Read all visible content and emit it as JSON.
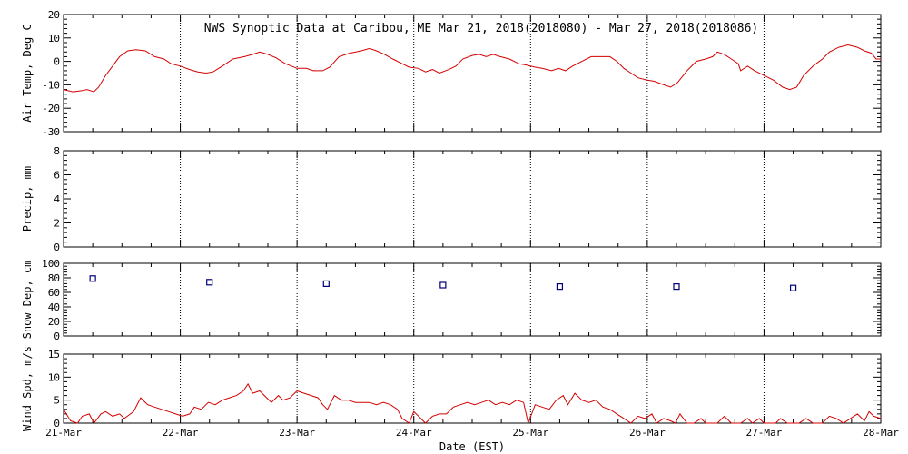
{
  "title": "NWS Synoptic Data at Caribou, ME   Mar 21, 2018(2018080) - Mar 27, 2018(2018086)",
  "chart_data": {
    "x_axis": {
      "label": "Date (EST)",
      "range_days": [
        0,
        7
      ],
      "ticks": [
        {
          "day": 0,
          "label": "21-Mar"
        },
        {
          "day": 1,
          "label": "22-Mar"
        },
        {
          "day": 2,
          "label": "23-Mar"
        },
        {
          "day": 3,
          "label": "24-Mar"
        },
        {
          "day": 4,
          "label": "25-Mar"
        },
        {
          "day": 5,
          "label": "26-Mar"
        },
        {
          "day": 6,
          "label": "27-Mar"
        },
        {
          "day": 7,
          "label": "28-Mar"
        }
      ],
      "grid": true
    },
    "panels": [
      {
        "id": "air-temp",
        "type": "line",
        "ylabel": "Air Temp, Deg C",
        "ylim": [
          -30,
          20
        ],
        "yticks": [
          -30,
          -20,
          -10,
          0,
          10,
          20
        ],
        "color": "#d40000",
        "series": [
          {
            "x": 0.0,
            "y": -12
          },
          {
            "x": 0.08,
            "y": -13
          },
          {
            "x": 0.16,
            "y": -12.5
          },
          {
            "x": 0.2,
            "y": -12
          },
          {
            "x": 0.26,
            "y": -13
          },
          {
            "x": 0.3,
            "y": -11
          },
          {
            "x": 0.36,
            "y": -6
          },
          {
            "x": 0.42,
            "y": -2
          },
          {
            "x": 0.48,
            "y": 2
          },
          {
            "x": 0.55,
            "y": 4.5
          },
          {
            "x": 0.62,
            "y": 5
          },
          {
            "x": 0.7,
            "y": 4.5
          },
          {
            "x": 0.78,
            "y": 2
          },
          {
            "x": 0.86,
            "y": 1
          },
          {
            "x": 0.92,
            "y": -1
          },
          {
            "x": 1.0,
            "y": -2
          },
          {
            "x": 1.08,
            "y": -3.5
          },
          {
            "x": 1.15,
            "y": -4.5
          },
          {
            "x": 1.22,
            "y": -5
          },
          {
            "x": 1.28,
            "y": -4.5
          },
          {
            "x": 1.36,
            "y": -2
          },
          {
            "x": 1.45,
            "y": 1
          },
          {
            "x": 1.55,
            "y": 2
          },
          {
            "x": 1.62,
            "y": 3
          },
          {
            "x": 1.68,
            "y": 4
          },
          {
            "x": 1.75,
            "y": 3
          },
          {
            "x": 1.82,
            "y": 1.5
          },
          {
            "x": 1.9,
            "y": -1
          },
          {
            "x": 2.0,
            "y": -3
          },
          {
            "x": 2.08,
            "y": -3
          },
          {
            "x": 2.14,
            "y": -4
          },
          {
            "x": 2.22,
            "y": -4
          },
          {
            "x": 2.28,
            "y": -2.5
          },
          {
            "x": 2.36,
            "y": 2
          },
          {
            "x": 2.45,
            "y": 3.5
          },
          {
            "x": 2.55,
            "y": 4.5
          },
          {
            "x": 2.62,
            "y": 5.5
          },
          {
            "x": 2.68,
            "y": 4.5
          },
          {
            "x": 2.75,
            "y": 3
          },
          {
            "x": 2.82,
            "y": 1
          },
          {
            "x": 2.9,
            "y": -1
          },
          {
            "x": 2.96,
            "y": -2.5
          },
          {
            "x": 3.04,
            "y": -3
          },
          {
            "x": 3.1,
            "y": -4.5
          },
          {
            "x": 3.16,
            "y": -3.5
          },
          {
            "x": 3.22,
            "y": -5
          },
          {
            "x": 3.3,
            "y": -3.5
          },
          {
            "x": 3.36,
            "y": -2
          },
          {
            "x": 3.42,
            "y": 1
          },
          {
            "x": 3.5,
            "y": 2.5
          },
          {
            "x": 3.56,
            "y": 3
          },
          {
            "x": 3.62,
            "y": 2
          },
          {
            "x": 3.68,
            "y": 3
          },
          {
            "x": 3.74,
            "y": 2
          },
          {
            "x": 3.82,
            "y": 1
          },
          {
            "x": 3.9,
            "y": -1
          },
          {
            "x": 3.96,
            "y": -1.5
          },
          {
            "x": 4.04,
            "y": -2.5
          },
          {
            "x": 4.1,
            "y": -3
          },
          {
            "x": 4.18,
            "y": -4
          },
          {
            "x": 4.24,
            "y": -3
          },
          {
            "x": 4.3,
            "y": -4
          },
          {
            "x": 4.36,
            "y": -2
          },
          {
            "x": 4.44,
            "y": 0
          },
          {
            "x": 4.52,
            "y": 2
          },
          {
            "x": 4.6,
            "y": 2
          },
          {
            "x": 4.68,
            "y": 2
          },
          {
            "x": 4.74,
            "y": 0
          },
          {
            "x": 4.8,
            "y": -3
          },
          {
            "x": 4.86,
            "y": -5
          },
          {
            "x": 4.92,
            "y": -7
          },
          {
            "x": 5.0,
            "y": -8
          },
          {
            "x": 5.06,
            "y": -8.5
          },
          {
            "x": 5.14,
            "y": -10
          },
          {
            "x": 5.2,
            "y": -11
          },
          {
            "x": 5.26,
            "y": -9
          },
          {
            "x": 5.34,
            "y": -4
          },
          {
            "x": 5.42,
            "y": 0
          },
          {
            "x": 5.5,
            "y": 1
          },
          {
            "x": 5.56,
            "y": 2
          },
          {
            "x": 5.6,
            "y": 4
          },
          {
            "x": 5.66,
            "y": 3
          },
          {
            "x": 5.72,
            "y": 1
          },
          {
            "x": 5.78,
            "y": -1
          },
          {
            "x": 5.8,
            "y": -4
          },
          {
            "x": 5.86,
            "y": -2
          },
          {
            "x": 5.92,
            "y": -4
          },
          {
            "x": 6.0,
            "y": -6
          },
          {
            "x": 6.08,
            "y": -8
          },
          {
            "x": 6.16,
            "y": -11
          },
          {
            "x": 6.22,
            "y": -12
          },
          {
            "x": 6.28,
            "y": -11
          },
          {
            "x": 6.34,
            "y": -6
          },
          {
            "x": 6.42,
            "y": -2
          },
          {
            "x": 6.5,
            "y": 1
          },
          {
            "x": 6.56,
            "y": 4
          },
          {
            "x": 6.64,
            "y": 6
          },
          {
            "x": 6.72,
            "y": 7
          },
          {
            "x": 6.8,
            "y": 6
          },
          {
            "x": 6.86,
            "y": 4.5
          },
          {
            "x": 6.92,
            "y": 3.5
          },
          {
            "x": 6.96,
            "y": 1
          },
          {
            "x": 7.0,
            "y": 1
          }
        ]
      },
      {
        "id": "precip",
        "type": "line",
        "ylabel": "Precip, mm",
        "ylim": [
          0,
          8
        ],
        "yticks": [
          0,
          2,
          4,
          6,
          8
        ],
        "series": []
      },
      {
        "id": "snow-depth",
        "type": "scatter",
        "ylabel": "Snow Dep, cm",
        "ylim": [
          0,
          100
        ],
        "yticks": [
          0,
          20,
          40,
          60,
          80,
          100
        ],
        "color": "#00007a",
        "series": [
          {
            "x": 0.25,
            "y": 79
          },
          {
            "x": 1.25,
            "y": 74
          },
          {
            "x": 2.25,
            "y": 72
          },
          {
            "x": 3.25,
            "y": 70
          },
          {
            "x": 4.25,
            "y": 68
          },
          {
            "x": 5.25,
            "y": 68
          },
          {
            "x": 6.25,
            "y": 66
          }
        ]
      },
      {
        "id": "wind-speed",
        "type": "line",
        "ylabel": "Wind Spd, m/s",
        "ylim": [
          0,
          15
        ],
        "yticks": [
          0,
          5,
          10,
          15
        ],
        "color": "#d40000",
        "series": [
          {
            "x": 0.0,
            "y": 3
          },
          {
            "x": 0.06,
            "y": 0.5
          },
          {
            "x": 0.12,
            "y": 0
          },
          {
            "x": 0.16,
            "y": 1.5
          },
          {
            "x": 0.22,
            "y": 2
          },
          {
            "x": 0.26,
            "y": 0
          },
          {
            "x": 0.32,
            "y": 2
          },
          {
            "x": 0.36,
            "y": 2.5
          },
          {
            "x": 0.42,
            "y": 1.5
          },
          {
            "x": 0.48,
            "y": 2
          },
          {
            "x": 0.52,
            "y": 1
          },
          {
            "x": 0.6,
            "y": 2.5
          },
          {
            "x": 0.66,
            "y": 5.5
          },
          {
            "x": 0.72,
            "y": 4
          },
          {
            "x": 0.78,
            "y": 3.5
          },
          {
            "x": 0.84,
            "y": 3
          },
          {
            "x": 0.9,
            "y": 2.5
          },
          {
            "x": 0.96,
            "y": 2
          },
          {
            "x": 1.02,
            "y": 1.5
          },
          {
            "x": 1.08,
            "y": 2
          },
          {
            "x": 1.12,
            "y": 3.5
          },
          {
            "x": 1.18,
            "y": 3
          },
          {
            "x": 1.24,
            "y": 4.5
          },
          {
            "x": 1.3,
            "y": 4
          },
          {
            "x": 1.36,
            "y": 5
          },
          {
            "x": 1.42,
            "y": 5.5
          },
          {
            "x": 1.48,
            "y": 6
          },
          {
            "x": 1.54,
            "y": 7
          },
          {
            "x": 1.58,
            "y": 8.5
          },
          {
            "x": 1.62,
            "y": 6.5
          },
          {
            "x": 1.68,
            "y": 7
          },
          {
            "x": 1.74,
            "y": 5.5
          },
          {
            "x": 1.78,
            "y": 4.5
          },
          {
            "x": 1.84,
            "y": 6
          },
          {
            "x": 1.88,
            "y": 5
          },
          {
            "x": 1.94,
            "y": 5.5
          },
          {
            "x": 2.0,
            "y": 7
          },
          {
            "x": 2.06,
            "y": 6.5
          },
          {
            "x": 2.12,
            "y": 6
          },
          {
            "x": 2.18,
            "y": 5.5
          },
          {
            "x": 2.22,
            "y": 4
          },
          {
            "x": 2.26,
            "y": 3
          },
          {
            "x": 2.32,
            "y": 6
          },
          {
            "x": 2.38,
            "y": 5
          },
          {
            "x": 2.44,
            "y": 5
          },
          {
            "x": 2.5,
            "y": 4.5
          },
          {
            "x": 2.56,
            "y": 4.5
          },
          {
            "x": 2.62,
            "y": 4.5
          },
          {
            "x": 2.68,
            "y": 4
          },
          {
            "x": 2.74,
            "y": 4.5
          },
          {
            "x": 2.8,
            "y": 4
          },
          {
            "x": 2.86,
            "y": 3
          },
          {
            "x": 2.9,
            "y": 1
          },
          {
            "x": 2.96,
            "y": 0
          },
          {
            "x": 3.0,
            "y": 2.5
          },
          {
            "x": 3.06,
            "y": 1
          },
          {
            "x": 3.1,
            "y": 0
          },
          {
            "x": 3.16,
            "y": 1.5
          },
          {
            "x": 3.22,
            "y": 2
          },
          {
            "x": 3.28,
            "y": 2
          },
          {
            "x": 3.34,
            "y": 3.5
          },
          {
            "x": 3.4,
            "y": 4
          },
          {
            "x": 3.46,
            "y": 4.5
          },
          {
            "x": 3.52,
            "y": 4
          },
          {
            "x": 3.58,
            "y": 4.5
          },
          {
            "x": 3.64,
            "y": 5
          },
          {
            "x": 3.7,
            "y": 4
          },
          {
            "x": 3.76,
            "y": 4.5
          },
          {
            "x": 3.82,
            "y": 4
          },
          {
            "x": 3.88,
            "y": 5
          },
          {
            "x": 3.94,
            "y": 4.5
          },
          {
            "x": 3.98,
            "y": 0
          },
          {
            "x": 4.04,
            "y": 4
          },
          {
            "x": 4.1,
            "y": 3.5
          },
          {
            "x": 4.16,
            "y": 3
          },
          {
            "x": 4.22,
            "y": 5
          },
          {
            "x": 4.28,
            "y": 6
          },
          {
            "x": 4.32,
            "y": 4
          },
          {
            "x": 4.38,
            "y": 6.5
          },
          {
            "x": 4.44,
            "y": 5
          },
          {
            "x": 4.5,
            "y": 4.5
          },
          {
            "x": 4.56,
            "y": 5
          },
          {
            "x": 4.62,
            "y": 3.5
          },
          {
            "x": 4.68,
            "y": 3
          },
          {
            "x": 4.74,
            "y": 2
          },
          {
            "x": 4.8,
            "y": 1
          },
          {
            "x": 4.86,
            "y": 0
          },
          {
            "x": 4.92,
            "y": 1.5
          },
          {
            "x": 4.98,
            "y": 1
          },
          {
            "x": 5.04,
            "y": 2
          },
          {
            "x": 5.08,
            "y": 0
          },
          {
            "x": 5.14,
            "y": 1
          },
          {
            "x": 5.2,
            "y": 0.5
          },
          {
            "x": 5.24,
            "y": 0
          },
          {
            "x": 5.28,
            "y": 2
          },
          {
            "x": 5.34,
            "y": 0
          },
          {
            "x": 5.4,
            "y": 0
          },
          {
            "x": 5.46,
            "y": 1
          },
          {
            "x": 5.5,
            "y": 0
          },
          {
            "x": 5.6,
            "y": 0
          },
          {
            "x": 5.66,
            "y": 1.5
          },
          {
            "x": 5.72,
            "y": 0
          },
          {
            "x": 5.8,
            "y": 0
          },
          {
            "x": 5.86,
            "y": 1
          },
          {
            "x": 5.9,
            "y": 0
          },
          {
            "x": 5.96,
            "y": 1
          },
          {
            "x": 6.0,
            "y": 0
          },
          {
            "x": 6.1,
            "y": 0
          },
          {
            "x": 6.14,
            "y": 1
          },
          {
            "x": 6.2,
            "y": 0
          },
          {
            "x": 6.3,
            "y": 0
          },
          {
            "x": 6.36,
            "y": 1
          },
          {
            "x": 6.42,
            "y": 0
          },
          {
            "x": 6.5,
            "y": 0
          },
          {
            "x": 6.56,
            "y": 1.5
          },
          {
            "x": 6.62,
            "y": 1
          },
          {
            "x": 6.68,
            "y": 0
          },
          {
            "x": 6.74,
            "y": 1
          },
          {
            "x": 6.8,
            "y": 2
          },
          {
            "x": 6.86,
            "y": 0.5
          },
          {
            "x": 6.9,
            "y": 2.5
          },
          {
            "x": 6.94,
            "y": 1.5
          },
          {
            "x": 7.0,
            "y": 1
          }
        ]
      }
    ]
  }
}
